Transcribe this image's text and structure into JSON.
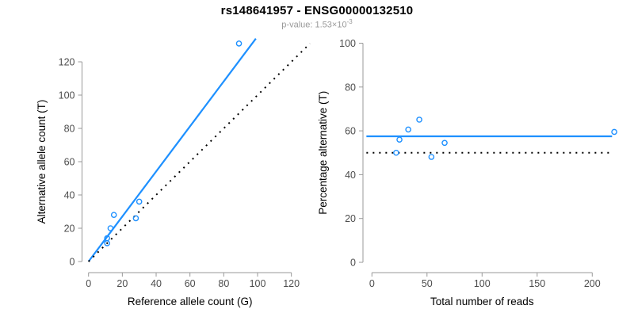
{
  "header": {
    "title": "rs148641957 - ENSG00000132510",
    "p_value_prefix": "p-value: 1.53×10",
    "p_value_exponent": "-3"
  },
  "colors": {
    "accent_blue": "#1E90FF",
    "dotted_line_black": "#000000",
    "axis_gray": "#999999",
    "tick_label_gray": "#4d4d4d",
    "axis_title_black": "#000000",
    "subtitle_gray": "#999999"
  },
  "chart_data": [
    {
      "type": "scatter",
      "name": "allele-counts-scatter",
      "xlabel": "Reference allele count (G)",
      "ylabel": "Alternative allele count (T)",
      "xticks": [
        0,
        20,
        40,
        60,
        80,
        100,
        120
      ],
      "yticks": [
        0,
        20,
        40,
        60,
        80,
        100,
        120
      ],
      "xlim": [
        0,
        131
      ],
      "ylim": [
        0,
        134
      ],
      "grid": false,
      "points": [
        [
          11,
          11
        ],
        [
          11,
          14
        ],
        [
          13,
          20
        ],
        [
          15,
          28
        ],
        [
          28,
          26
        ],
        [
          30,
          36
        ],
        [
          89,
          131
        ]
      ],
      "lines": [
        {
          "name": "fit-line",
          "style": "solid",
          "color": "#1E90FF",
          "slope": 1.353,
          "intercept": 0,
          "x_range": [
            0,
            99
          ]
        },
        {
          "name": "identity-line",
          "style": "dotted",
          "color": "#000000",
          "slope": 1,
          "intercept": 0,
          "x_range": [
            0,
            131
          ]
        }
      ]
    },
    {
      "type": "scatter",
      "name": "percentage-vs-coverage-scatter",
      "xlabel": "Total number of reads",
      "ylabel": "Percentage alternative (T)",
      "xticks": [
        0,
        50,
        100,
        150,
        200
      ],
      "yticks": [
        0,
        20,
        40,
        60,
        80,
        100
      ],
      "xlim": [
        0,
        220
      ],
      "ylim": [
        0,
        100
      ],
      "grid": false,
      "points": [
        [
          22,
          50
        ],
        [
          25,
          56
        ],
        [
          33,
          60.6
        ],
        [
          43,
          65.1
        ],
        [
          54,
          48.1
        ],
        [
          66,
          54.5
        ],
        [
          220,
          59.5
        ]
      ],
      "lines": [
        {
          "name": "mean-percentage-line",
          "style": "solid",
          "color": "#1E90FF",
          "slope": 0,
          "intercept": 57.5,
          "x_range": [
            -5,
            218
          ]
        },
        {
          "name": "expected-50-percent-line",
          "style": "dotted",
          "color": "#000000",
          "slope": 0,
          "intercept": 50,
          "x_range": [
            -5,
            218
          ]
        }
      ]
    }
  ]
}
